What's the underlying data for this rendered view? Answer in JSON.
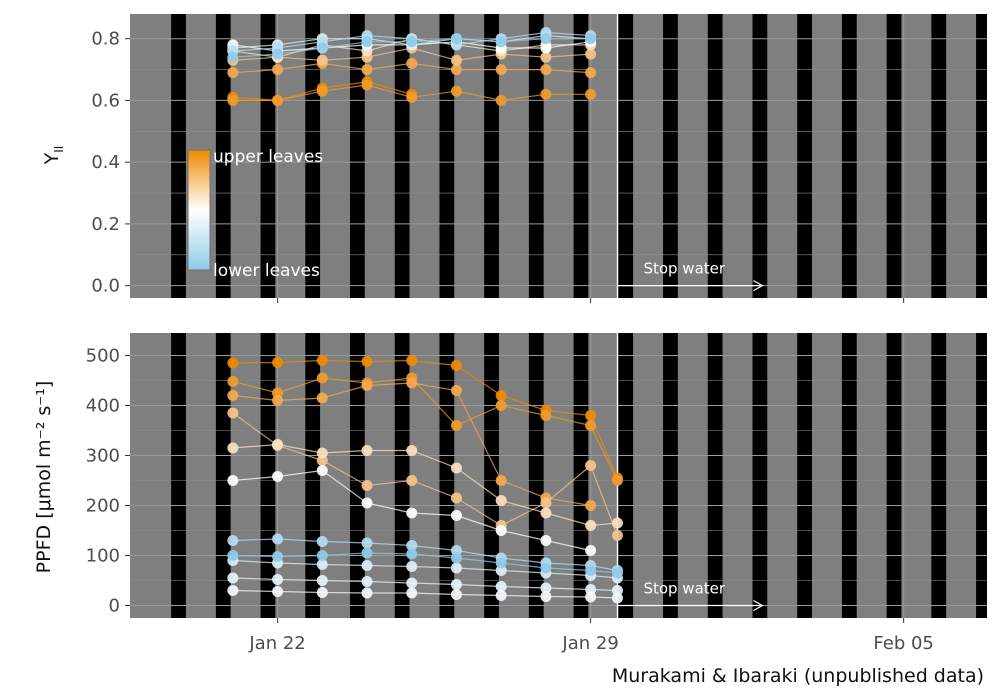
{
  "chart_data": [
    {
      "type": "scatter",
      "ylabel_main": "Y",
      "ylabel_sub": "II",
      "ylim": [
        -0.04,
        0.88
      ],
      "yticks": [
        0.0,
        0.2,
        0.4,
        0.6,
        0.8
      ],
      "ytick_labels": [
        "0.0",
        "0.2",
        "0.4",
        "0.6",
        "0.8"
      ],
      "legend": {
        "high_label": "upper leaves",
        "low_label": "lower leaves",
        "placement": "left-middle"
      },
      "annotation": {
        "text": "Stop water",
        "at_day": 29.6
      },
      "series": [
        {
          "color": "#F08A00",
          "x": [
            21.0,
            22.0,
            23.0,
            24.0,
            25.0
          ],
          "y": [
            0.61,
            0.6,
            0.64,
            0.66,
            0.62
          ]
        },
        {
          "color": "#F29B2A",
          "x": [
            21.0,
            22.0,
            23.0,
            24.0,
            25.0,
            26.0,
            27.0,
            28.0,
            29.0
          ],
          "y": [
            0.6,
            0.6,
            0.63,
            0.65,
            0.61,
            0.63,
            0.6,
            0.62,
            0.62
          ]
        },
        {
          "color": "#F4A94D",
          "x": [
            21.0,
            22.0,
            23.0,
            24.0,
            25.0,
            26.0,
            27.0,
            28.0,
            29.0
          ],
          "y": [
            0.69,
            0.7,
            0.72,
            0.7,
            0.72,
            0.7,
            0.7,
            0.7,
            0.69
          ]
        },
        {
          "color": "#F7C488",
          "x": [
            21.0,
            22.0,
            23.0,
            24.0,
            25.0,
            26.0,
            27.0,
            28.0,
            29.0
          ],
          "y": [
            0.73,
            0.74,
            0.73,
            0.74,
            0.77,
            0.73,
            0.75,
            0.74,
            0.75
          ]
        },
        {
          "color": "#FBE1C2",
          "x": [
            21.0,
            22.0,
            23.0,
            24.0,
            25.0,
            26.0,
            27.0,
            28.0,
            29.0
          ],
          "y": [
            0.76,
            0.74,
            0.78,
            0.76,
            0.8,
            0.78,
            0.76,
            0.78,
            0.78
          ]
        },
        {
          "color": "#FFFFFF",
          "x": [
            21.0,
            22.0,
            23.0,
            24.0,
            25.0,
            26.0,
            27.0,
            28.0,
            29.0
          ],
          "y": [
            0.78,
            0.76,
            0.77,
            0.78,
            0.78,
            0.79,
            0.77,
            0.77,
            0.79
          ]
        },
        {
          "color": "#DCEFF8",
          "x": [
            21.0,
            22.0,
            23.0,
            24.0,
            25.0,
            26.0,
            27.0,
            28.0,
            29.0
          ],
          "y": [
            0.77,
            0.78,
            0.8,
            0.8,
            0.78,
            0.8,
            0.79,
            0.81,
            0.8
          ]
        },
        {
          "color": "#B4DCF0",
          "x": [
            21.0,
            22.0,
            23.0,
            24.0,
            25.0,
            26.0,
            27.0,
            28.0,
            29.0
          ],
          "y": [
            0.76,
            0.77,
            0.79,
            0.81,
            0.8,
            0.78,
            0.8,
            0.82,
            0.81
          ]
        },
        {
          "color": "#8FCBE8",
          "x": [
            21.0,
            22.0,
            23.0,
            24.0,
            25.0,
            26.0,
            27.0,
            28.0,
            29.0
          ],
          "y": [
            0.74,
            0.75,
            0.77,
            0.79,
            0.79,
            0.8,
            0.79,
            0.8,
            0.8
          ]
        }
      ]
    },
    {
      "type": "scatter",
      "ylabel": "PPFD [μmol m⁻² s⁻¹]",
      "ylim": [
        -25,
        545
      ],
      "yticks": [
        0,
        100,
        200,
        300,
        400,
        500
      ],
      "ytick_labels": [
        "0",
        "100",
        "200",
        "300",
        "400",
        "500"
      ],
      "xticks": [
        22,
        29,
        36
      ],
      "xtick_labels": [
        "Jan 22",
        "Jan 29",
        "Feb 05"
      ],
      "annotation": {
        "text": "Stop water",
        "at_day": 29.6
      },
      "series": [
        {
          "color": "#F08A00",
          "x": [
            21.0,
            22.0,
            23.0,
            24.0,
            25.0,
            26.0,
            27.0,
            28.0,
            29.0,
            29.6
          ],
          "y": [
            485,
            486,
            490,
            488,
            490,
            480,
            420,
            390,
            380,
            255
          ]
        },
        {
          "color": "#F29B2A",
          "x": [
            21.0,
            22.0,
            23.0,
            24.0,
            25.0,
            26.0,
            27.0,
            28.0,
            29.0,
            29.6
          ],
          "y": [
            448,
            425,
            455,
            445,
            455,
            360,
            400,
            380,
            360,
            250
          ]
        },
        {
          "color": "#F4A94D",
          "x": [
            21.0,
            22.0,
            23.0,
            24.0,
            25.0,
            26.0,
            27.0,
            28.0,
            29.0
          ],
          "y": [
            420,
            410,
            415,
            440,
            445,
            430,
            250,
            215,
            200
          ]
        },
        {
          "color": "#F7C488",
          "x": [
            21.0,
            22.0,
            23.0,
            24.0,
            25.0,
            26.0,
            27.0,
            28.0,
            29.0,
            29.6
          ],
          "y": [
            385,
            320,
            290,
            240,
            250,
            215,
            160,
            205,
            280,
            140
          ]
        },
        {
          "color": "#FBE1C2",
          "x": [
            21.0,
            22.0,
            23.0,
            24.0,
            25.0,
            26.0,
            27.0,
            28.0,
            29.0,
            29.6
          ],
          "y": [
            315,
            322,
            305,
            310,
            310,
            275,
            210,
            185,
            160,
            165
          ]
        },
        {
          "color": "#FFFFFF",
          "x": [
            21.0,
            22.0,
            23.0,
            24.0,
            25.0,
            26.0,
            27.0,
            28.0,
            29.0
          ],
          "y": [
            250,
            258,
            270,
            205,
            185,
            180,
            150,
            130,
            110
          ]
        },
        {
          "color": "#DCEFF8",
          "x": [
            21.0,
            22.0,
            23.0,
            24.0,
            25.0,
            26.0,
            27.0,
            28.0,
            29.0,
            29.6
          ],
          "y": [
            90,
            85,
            82,
            80,
            78,
            75,
            70,
            65,
            60,
            55
          ]
        },
        {
          "color": "#B4DCF0",
          "x": [
            21.0,
            22.0,
            23.0,
            24.0,
            25.0,
            26.0,
            27.0,
            28.0,
            29.0,
            29.6
          ],
          "y": [
            130,
            133,
            128,
            125,
            120,
            110,
            95,
            85,
            80,
            70
          ]
        },
        {
          "color": "#8FCBE8",
          "x": [
            21.0,
            22.0,
            23.0,
            24.0,
            25.0,
            26.0,
            27.0,
            28.0,
            29.0,
            29.6
          ],
          "y": [
            100,
            98,
            100,
            105,
            103,
            95,
            85,
            75,
            70,
            65
          ]
        },
        {
          "color": "#E8F4FA",
          "x": [
            21.0,
            22.0,
            23.0,
            24.0,
            25.0,
            26.0,
            27.0,
            28.0,
            29.0,
            29.6
          ],
          "y": [
            55,
            52,
            50,
            48,
            45,
            42,
            38,
            35,
            32,
            30
          ]
        },
        {
          "color": "#F5FAFD",
          "x": [
            21.0,
            22.0,
            23.0,
            24.0,
            25.0,
            26.0,
            27.0,
            28.0,
            29.0,
            29.6
          ],
          "y": [
            30,
            28,
            26,
            25,
            25,
            22,
            20,
            18,
            17,
            15
          ]
        }
      ]
    }
  ],
  "caption": "Murakami & Ibaraki (unpublished data)"
}
